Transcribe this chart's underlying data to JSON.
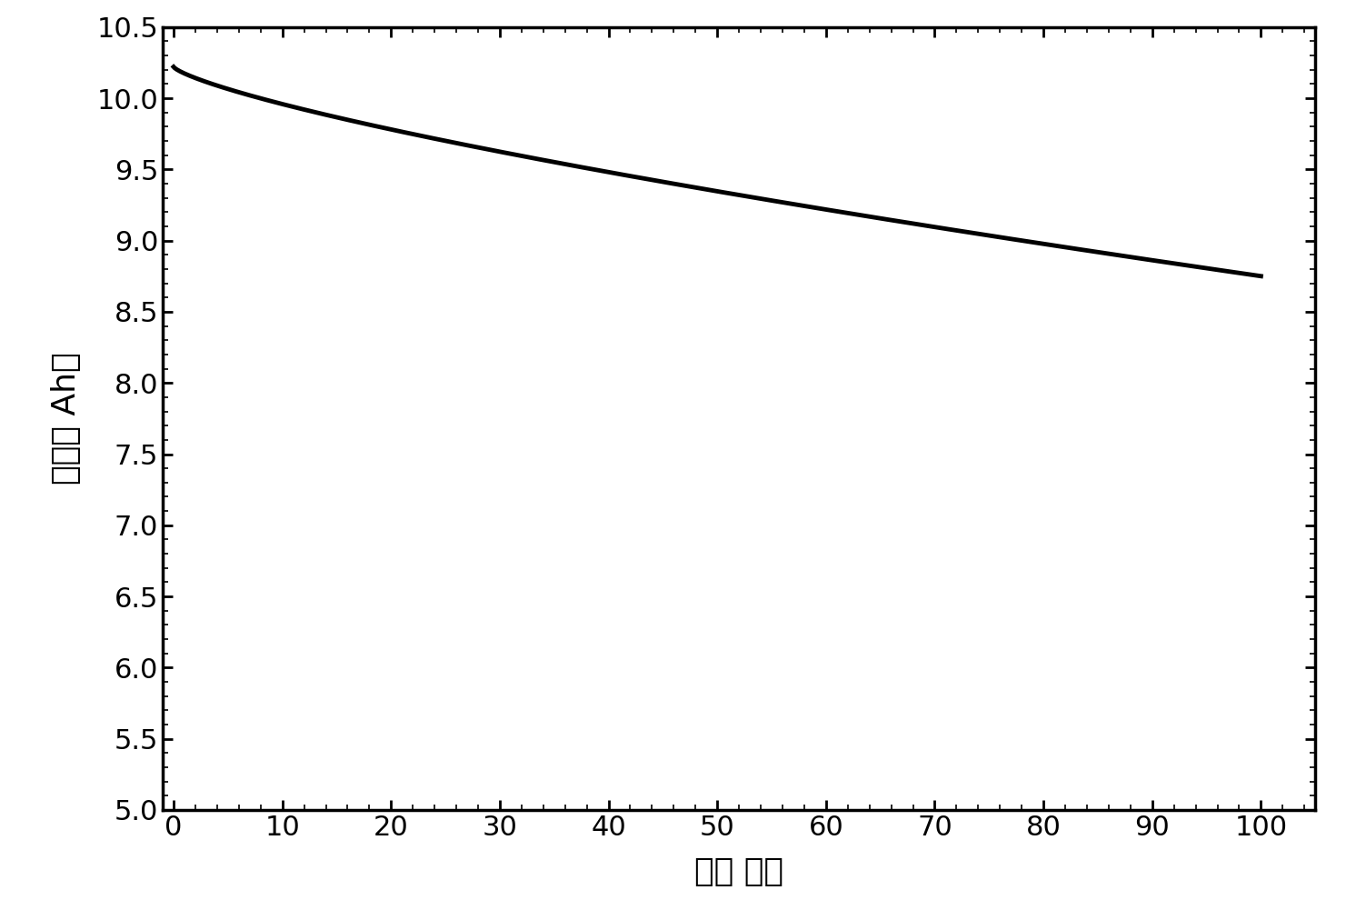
{
  "title": "",
  "xlabel": "循环 次数",
  "ylabel": "容量（ Ah）",
  "xlim": [
    -1,
    105
  ],
  "ylim": [
    5.0,
    10.5
  ],
  "xticks": [
    0,
    10,
    20,
    30,
    40,
    50,
    60,
    70,
    80,
    90,
    100
  ],
  "yticks": [
    5.0,
    5.5,
    6.0,
    6.5,
    7.0,
    7.5,
    8.0,
    8.5,
    9.0,
    9.5,
    10.0,
    10.5
  ],
  "x_start": 0,
  "x_end": 100,
  "y_start": 10.22,
  "y_end": 8.75,
  "line_color": "#000000",
  "line_width": 3.5,
  "background_color": "#ffffff",
  "tick_fontsize": 22,
  "label_fontsize": 26,
  "curve_power": 0.75
}
